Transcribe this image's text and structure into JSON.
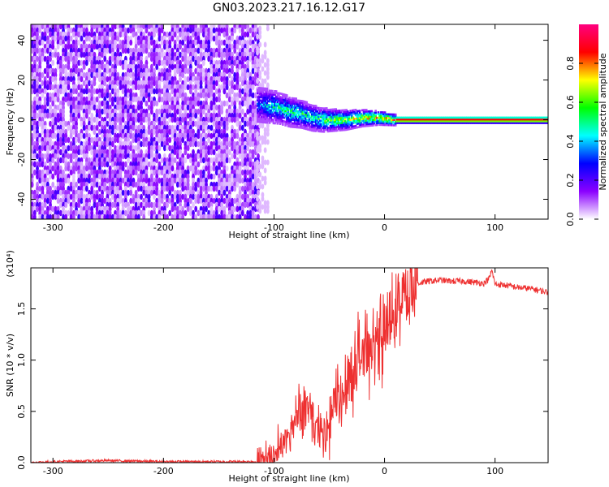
{
  "figure": {
    "title": "GN03.2023.217.16.12.G17"
  },
  "chart_data": [
    {
      "type": "heatmap",
      "xlabel": "Height of straight line (km)",
      "ylabel": "Frequency (Hz)",
      "xlim": [
        -320,
        148
      ],
      "ylim": [
        -50,
        48
      ],
      "x_ticks": [
        -300,
        -200,
        -100,
        0,
        100
      ],
      "y_ticks": [
        -40,
        -20,
        0,
        20,
        40
      ],
      "colorbar": {
        "label": "Normalized spectral amplitude",
        "range": [
          0,
          1
        ],
        "ticks": [
          "0.0",
          "0.2",
          "0.4",
          "0.6",
          "0.8"
        ],
        "tick_values": [
          0.0,
          0.2,
          0.4,
          0.6,
          0.8
        ],
        "colormap": [
          "#ffffff",
          "#8b00ff",
          "#0000ff",
          "#00ffff",
          "#00ff00",
          "#ffff00",
          "#ff0000",
          "#ff0080"
        ]
      },
      "regions": {
        "noise_x_range": [
          -320,
          -115
        ],
        "noise_freq_range": [
          -50,
          48
        ],
        "signal_ridge": [
          {
            "x": -115,
            "f": 8,
            "amp": 0.35
          },
          {
            "x": -105,
            "f": 7,
            "amp": 0.5
          },
          {
            "x": -95,
            "f": 6,
            "amp": 0.55
          },
          {
            "x": -85,
            "f": 4,
            "amp": 0.6
          },
          {
            "x": -75,
            "f": 3,
            "amp": 0.6
          },
          {
            "x": -65,
            "f": 1,
            "amp": 0.55
          },
          {
            "x": -55,
            "f": 0,
            "amp": 0.65
          },
          {
            "x": -45,
            "f": 0,
            "amp": 0.7
          },
          {
            "x": -35,
            "f": 0,
            "amp": 0.75
          },
          {
            "x": -20,
            "f": 1,
            "amp": 0.8
          },
          {
            "x": -5,
            "f": 1,
            "amp": 0.85
          },
          {
            "x": 10,
            "f": 0,
            "amp": 0.95
          },
          {
            "x": 148,
            "f": 0,
            "amp": 0.95
          }
        ]
      }
    },
    {
      "type": "line",
      "xlabel": "Height of straight line (km)",
      "ylabel": "SNR (10 * v/v)",
      "multiplier_label": "(x10⁴)",
      "xlim": [
        -320,
        148
      ],
      "ylim": [
        0,
        1.9
      ],
      "x_ticks": [
        -300,
        -200,
        -100,
        0,
        100
      ],
      "y_ticks": [
        "0.0",
        "0.5",
        "1.0",
        "1.5"
      ],
      "y_tick_values": [
        0.0,
        0.5,
        1.0,
        1.5
      ],
      "series": [
        {
          "color": "#ee3030",
          "x": [
            -320,
            -300,
            -250,
            -200,
            -150,
            -115,
            -105,
            -95,
            -85,
            -80,
            -75,
            -70,
            -65,
            -60,
            -55,
            -50,
            -45,
            -40,
            -35,
            -30,
            -25,
            -20,
            -15,
            -10,
            -5,
            0,
            5,
            10,
            15,
            20,
            25,
            30,
            35,
            40,
            50,
            60,
            70,
            80,
            90,
            95,
            97,
            100,
            110,
            120,
            130,
            140,
            148
          ],
          "y": [
            0.0,
            0.01,
            0.02,
            0.01,
            0.01,
            0.01,
            0.05,
            0.12,
            0.3,
            0.45,
            0.5,
            0.55,
            0.4,
            0.3,
            0.2,
            0.35,
            0.55,
            0.75,
            0.8,
            0.9,
            1.0,
            1.05,
            1.1,
            1.15,
            1.2,
            1.25,
            1.3,
            1.45,
            1.55,
            1.65,
            1.72,
            1.75,
            1.76,
            1.77,
            1.78,
            1.77,
            1.77,
            1.76,
            1.75,
            1.8,
            1.88,
            1.74,
            1.73,
            1.71,
            1.7,
            1.68,
            1.66
          ]
        }
      ]
    }
  ]
}
